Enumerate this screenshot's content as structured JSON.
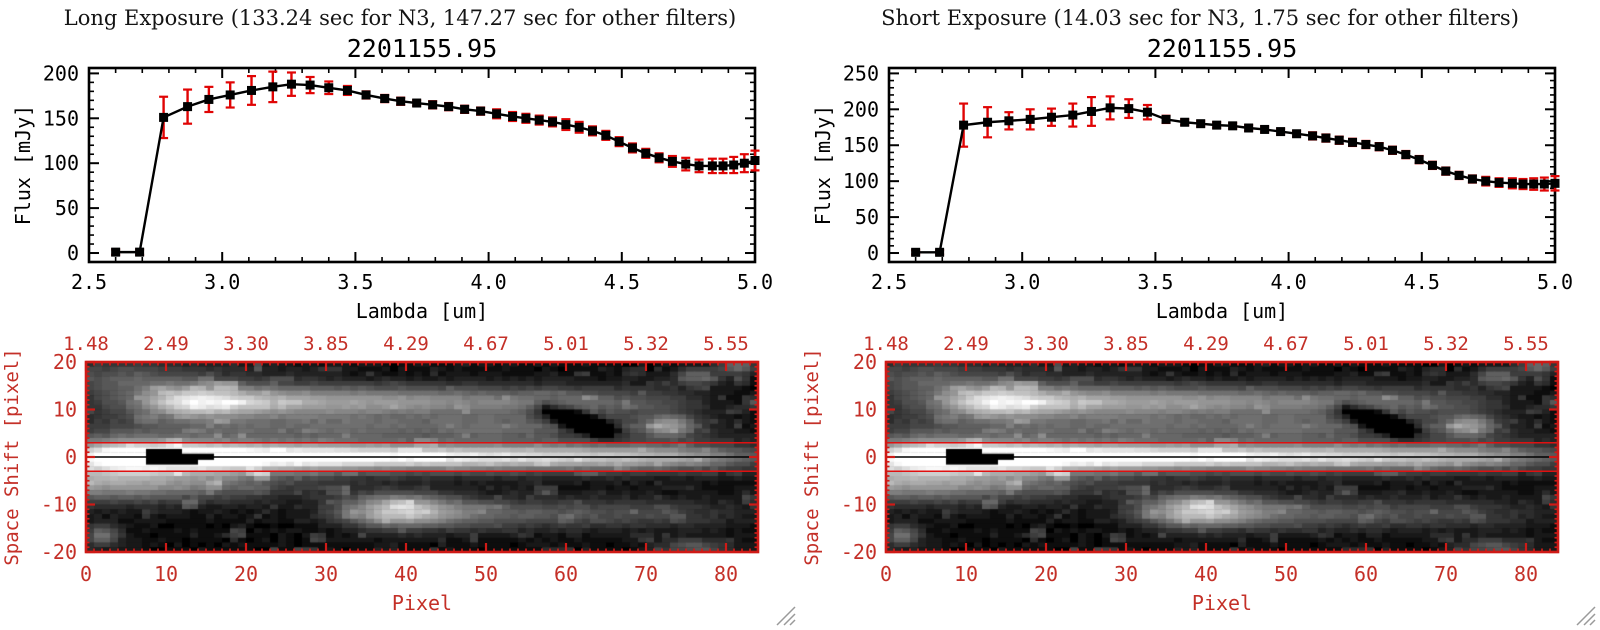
{
  "panels": [
    {
      "title": "Long Exposure (133.24 sec for N3, 147.27 sec for other filters)",
      "subtitle": "2201155.95"
    },
    {
      "title": "Short Exposure (14.03 sec for N3, 1.75 sec for other filters)",
      "subtitle": "2201155.95"
    }
  ],
  "colors": {
    "axis_black": "#000000",
    "label_red": "#c43028",
    "frame_red": "#cf1a16",
    "error_red": "#e00404",
    "aperture_red": "#e01010",
    "grip_gray": "#9a9a9a"
  },
  "chart_data": [
    {
      "type": "line",
      "title": "2201155.95",
      "xlabel": "Lambda [um]",
      "ylabel": "Flux [mJy]",
      "xlim": [
        2.5,
        5.0
      ],
      "ylim": [
        -10,
        206
      ],
      "xticks": [
        2.5,
        3.0,
        3.5,
        4.0,
        4.5,
        5.0
      ],
      "yticks": [
        0,
        50,
        100,
        150,
        200
      ],
      "x_minor_step": 0.1,
      "y_minor_step": 10,
      "marker": "filled-square",
      "error_bars": true,
      "x": [
        2.6,
        2.69,
        2.78,
        2.87,
        2.95,
        3.03,
        3.11,
        3.19,
        3.26,
        3.33,
        3.4,
        3.47,
        3.54,
        3.61,
        3.67,
        3.73,
        3.79,
        3.85,
        3.91,
        3.97,
        4.03,
        4.09,
        4.14,
        4.19,
        4.24,
        4.29,
        4.34,
        4.39,
        4.44,
        4.49,
        4.54,
        4.59,
        4.64,
        4.69,
        4.74,
        4.79,
        4.84,
        4.88,
        4.92,
        4.96,
        5.0
      ],
      "y": [
        1,
        1,
        151,
        163,
        171,
        176,
        181,
        185,
        188,
        187,
        184,
        181,
        176,
        172,
        169,
        167,
        165,
        163,
        160,
        158,
        155,
        152,
        150,
        148,
        146,
        143,
        140,
        136,
        131,
        124,
        117,
        111,
        106,
        102,
        99,
        97,
        97,
        97,
        98,
        100,
        103
      ],
      "yerr": [
        3,
        3,
        23,
        19,
        14,
        14,
        16,
        17,
        13,
        9,
        7,
        5,
        4,
        4,
        4,
        3,
        4,
        4,
        4,
        4,
        5,
        5,
        5,
        5,
        5,
        6,
        6,
        5,
        5,
        5,
        5,
        5,
        5,
        6,
        7,
        7,
        8,
        8,
        9,
        10,
        11
      ]
    },
    {
      "type": "line",
      "title": "2201155.95",
      "xlabel": "Lambda [um]",
      "ylabel": "Flux [mJy]",
      "xlim": [
        2.5,
        5.0
      ],
      "ylim": [
        -12.5,
        257.5
      ],
      "xticks": [
        2.5,
        3.0,
        3.5,
        4.0,
        4.5,
        5.0
      ],
      "yticks": [
        0,
        50,
        100,
        150,
        200,
        250
      ],
      "x_minor_step": 0.1,
      "y_minor_step": 10,
      "marker": "filled-square",
      "error_bars": true,
      "x": [
        2.6,
        2.69,
        2.78,
        2.87,
        2.95,
        3.03,
        3.11,
        3.19,
        3.26,
        3.33,
        3.4,
        3.47,
        3.54,
        3.61,
        3.67,
        3.73,
        3.79,
        3.85,
        3.91,
        3.97,
        4.03,
        4.09,
        4.14,
        4.19,
        4.24,
        4.29,
        4.34,
        4.39,
        4.44,
        4.49,
        4.54,
        4.59,
        4.64,
        4.69,
        4.74,
        4.79,
        4.84,
        4.88,
        4.92,
        4.96,
        5.0
      ],
      "y": [
        1,
        1,
        178,
        182,
        184,
        186,
        189,
        192,
        197,
        202,
        201,
        196,
        186,
        182,
        180,
        178,
        177,
        174,
        172,
        169,
        166,
        163,
        160,
        157,
        154,
        151,
        148,
        143,
        137,
        130,
        122,
        114,
        108,
        103,
        100,
        98,
        97,
        96,
        96,
        96,
        97
      ],
      "yerr": [
        3,
        3,
        30,
        21,
        12,
        14,
        12,
        16,
        20,
        16,
        13,
        10,
        5,
        4,
        4,
        4,
        4,
        4,
        4,
        4,
        4,
        5,
        5,
        5,
        5,
        5,
        5,
        5,
        5,
        5,
        5,
        5,
        5,
        5,
        6,
        6,
        7,
        7,
        8,
        9,
        10
      ]
    },
    {
      "type": "heatmap",
      "note": "2D spectral image shown identically under each spectrum",
      "xlabel": "Pixel",
      "ylabel": "Space Shift [pixel]",
      "xlim": [
        0,
        84
      ],
      "ylim": [
        -20,
        20
      ],
      "xticks": [
        0,
        10,
        20,
        30,
        40,
        50,
        60,
        70,
        80
      ],
      "yticks": [
        20,
        10,
        0,
        -10,
        -20
      ],
      "top_axis_labels": [
        "1.48",
        "2.49",
        "3.30",
        "3.85",
        "4.29",
        "4.67",
        "5.01",
        "5.32",
        "5.55"
      ],
      "aperture_lines_y": [
        3,
        -3
      ],
      "trace_line_y": 0,
      "features": {
        "seed": 7,
        "background": 0.03,
        "bands": [
          {
            "y": 0,
            "sy": 1.9,
            "stops": [
              [
                0,
                0.55
              ],
              [
                4,
                0.95
              ],
              [
                8,
                1.05
              ],
              [
                28,
                1.0
              ],
              [
                40,
                0.9
              ],
              [
                52,
                0.8
              ],
              [
                62,
                0.7
              ],
              [
                70,
                0.62
              ],
              [
                76,
                0.5
              ],
              [
                80,
                0.34
              ],
              [
                84,
                0.2
              ]
            ]
          },
          {
            "y": 0,
            "sy": 4.8,
            "stops": [
              [
                0,
                0.3
              ],
              [
                6,
                0.36
              ],
              [
                14,
                0.28
              ],
              [
                24,
                0.12
              ],
              [
                40,
                0.06
              ],
              [
                84,
                0.03
              ]
            ]
          },
          {
            "y": 11.5,
            "sy": 2.4,
            "stops": [
              [
                0,
                0.06
              ],
              [
                5,
                0.2
              ],
              [
                10,
                0.55
              ],
              [
                13,
                0.72
              ],
              [
                17,
                0.72
              ],
              [
                22,
                0.64
              ],
              [
                30,
                0.55
              ],
              [
                40,
                0.5
              ],
              [
                50,
                0.42
              ],
              [
                58,
                0.38
              ],
              [
                64,
                0.3
              ],
              [
                70,
                0.24
              ],
              [
                76,
                0.12
              ],
              [
                79,
                0.04
              ],
              [
                84,
                0
              ]
            ]
          },
          {
            "y": 6,
            "sy": 1.8,
            "stops": [
              [
                0,
                0
              ],
              [
                12,
                0.1
              ],
              [
                22,
                0.2
              ],
              [
                32,
                0.26
              ],
              [
                42,
                0.24
              ],
              [
                50,
                0.3
              ],
              [
                56,
                0.26
              ],
              [
                60,
                0.14
              ],
              [
                64,
                0.18
              ],
              [
                84,
                0
              ]
            ]
          },
          {
            "y": -12,
            "sy": 2.2,
            "stops": [
              [
                28,
                0
              ],
              [
                34,
                0.14
              ],
              [
                40,
                0.3
              ],
              [
                48,
                0.3
              ],
              [
                56,
                0.26
              ],
              [
                64,
                0.22
              ],
              [
                70,
                0.2
              ],
              [
                76,
                0.14
              ],
              [
                81,
                0.08
              ],
              [
                84,
                0.04
              ]
            ]
          },
          {
            "y": -5.5,
            "sy": 2.6,
            "stops": [
              [
                0,
                0.42
              ],
              [
                8,
                0.36
              ],
              [
                16,
                0.26
              ],
              [
                24,
                0.14
              ],
              [
                30,
                0.06
              ],
              [
                36,
                0
              ],
              [
                84,
                0
              ]
            ]
          },
          {
            "y": 16.5,
            "sy": 2.8,
            "stops": [
              [
                0,
                0.2
              ],
              [
                6,
                0.26
              ],
              [
                12,
                0.16
              ],
              [
                20,
                0.08
              ],
              [
                28,
                0.04
              ],
              [
                34,
                0
              ],
              [
                84,
                0
              ]
            ]
          }
        ],
        "blobs": [
          {
            "x": 39,
            "y": -11,
            "sx": 5,
            "sy": 2.4,
            "a": 0.5
          },
          {
            "x": 14,
            "y": 12,
            "sx": 4,
            "sy": 2.2,
            "a": 0.18
          },
          {
            "x": 73,
            "y": 6.5,
            "sx": 2.2,
            "sy": 1.6,
            "a": 0.42
          },
          {
            "x": 76.5,
            "y": 17,
            "sx": 2,
            "sy": 1.3,
            "a": 0.3
          },
          {
            "x": 81.5,
            "y": 19,
            "sx": 1.6,
            "sy": 1.1,
            "a": 0.34
          },
          {
            "x": 2,
            "y": -16.5,
            "sx": 1.6,
            "sy": 1.6,
            "a": 0.34
          },
          {
            "x": 76,
            "y": -19,
            "sx": 3,
            "sy": 1.3,
            "a": 0.26
          },
          {
            "x": 60,
            "y": 8.5,
            "sx": 1.3,
            "sy": 1.3,
            "a": -0.45
          },
          {
            "x": 62.5,
            "y": 7,
            "sx": 1.3,
            "sy": 1.3,
            "a": -0.45
          },
          {
            "x": 65,
            "y": 5.5,
            "sx": 1.3,
            "sy": 1.3,
            "a": -0.4
          },
          {
            "x": 57.5,
            "y": 10,
            "sx": 1.3,
            "sy": 1.3,
            "a": -0.3
          }
        ],
        "mask_rects": [
          [
            7.5,
            1.7,
            4.5,
            1.7
          ],
          [
            7.5,
            0.1,
            6.5,
            1.7
          ],
          [
            11.8,
            0.7,
            4.2,
            1.3
          ]
        ]
      }
    }
  ]
}
